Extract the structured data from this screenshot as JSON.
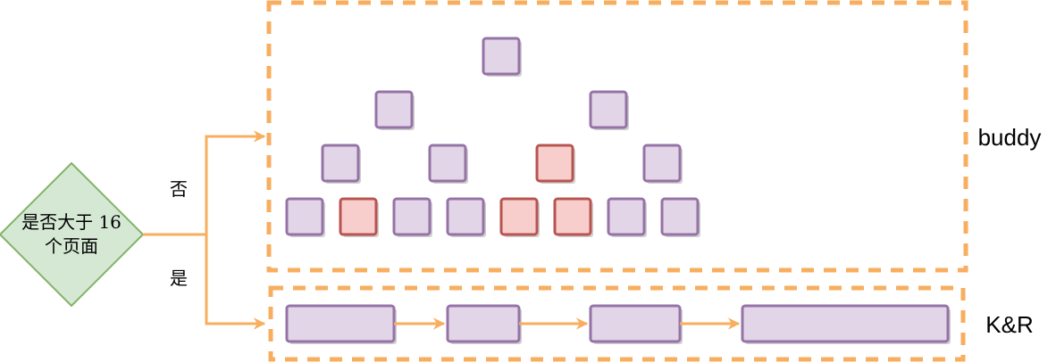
{
  "decision": {
    "line1": "是否大于 16",
    "line2": "个页面"
  },
  "branches": {
    "no_label": "否",
    "yes_label": "是"
  },
  "groups": {
    "buddy_label": "buddy",
    "kr_label": "K&R"
  },
  "colors": {
    "orange": "#F8AE5F",
    "purple_fill": "#E1D5E7",
    "purple_stroke": "#9673A6",
    "red_fill": "#F8CECC",
    "red_stroke": "#B85450",
    "green_fill": "#D5E8D4",
    "green_stroke": "#82B366",
    "shadow": "#cfcfcf"
  },
  "buddy_tree": {
    "levels": [
      [
        {
          "state": "free"
        }
      ],
      [
        {
          "state": "free"
        },
        {
          "state": "free"
        }
      ],
      [
        {
          "state": "free"
        },
        {
          "state": "free"
        },
        {
          "state": "used"
        },
        {
          "state": "free"
        }
      ],
      [
        {
          "state": "free"
        },
        {
          "state": "used"
        },
        {
          "state": "free"
        },
        {
          "state": "free"
        },
        {
          "state": "used"
        },
        {
          "state": "used"
        },
        {
          "state": "free"
        },
        {
          "state": "free"
        }
      ]
    ]
  },
  "kr_list": {
    "blocks": [
      {
        "state": "free"
      },
      {
        "state": "free"
      },
      {
        "state": "free"
      },
      {
        "state": "free"
      }
    ]
  }
}
